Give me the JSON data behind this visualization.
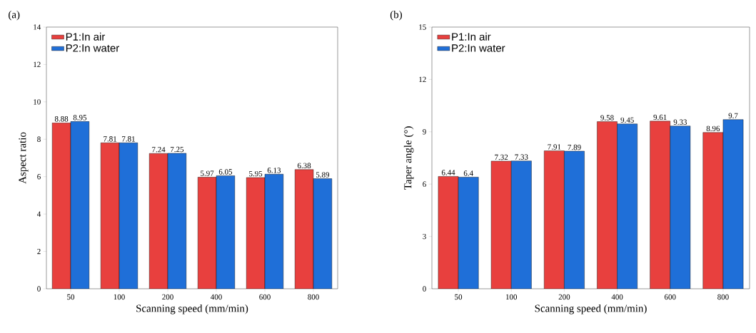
{
  "chart_data": [
    {
      "type": "bar",
      "title": "(a)",
      "xlabel": "Scanning speed (mm/min)",
      "ylabel": "Aspect ratio",
      "categories": [
        "50",
        "100",
        "200",
        "400",
        "600",
        "800"
      ],
      "series": [
        {
          "name": "P1:In air",
          "color": "#e8403e",
          "values": [
            8.88,
            7.81,
            7.24,
            5.97,
            5.95,
            6.38
          ]
        },
        {
          "name": "P2:In water",
          "color": "#1f6fd8",
          "values": [
            8.95,
            7.81,
            7.25,
            6.05,
            6.13,
            5.89
          ]
        }
      ],
      "ylim": [
        0,
        14
      ],
      "yticks": [
        0,
        2,
        4,
        6,
        8,
        10,
        12,
        14
      ],
      "data_labels": true,
      "legend": "top left",
      "grid": false
    },
    {
      "type": "bar",
      "title": "(b)",
      "xlabel": "Scanning speed (mm/min)",
      "ylabel": "Taper angle (°)",
      "categories": [
        "50",
        "100",
        "200",
        "400",
        "600",
        "800"
      ],
      "series": [
        {
          "name": "P1:In air",
          "color": "#e8403e",
          "values": [
            6.44,
            7.32,
            7.91,
            9.58,
            9.61,
            8.96
          ]
        },
        {
          "name": "P2:In water",
          "color": "#1f6fd8",
          "values": [
            6.4,
            7.33,
            7.89,
            9.45,
            9.33,
            9.7
          ]
        }
      ],
      "ylim": [
        0,
        15
      ],
      "yticks": [
        0,
        3,
        6,
        9,
        12,
        15
      ],
      "data_labels": true,
      "legend": "top left",
      "grid": false
    }
  ]
}
